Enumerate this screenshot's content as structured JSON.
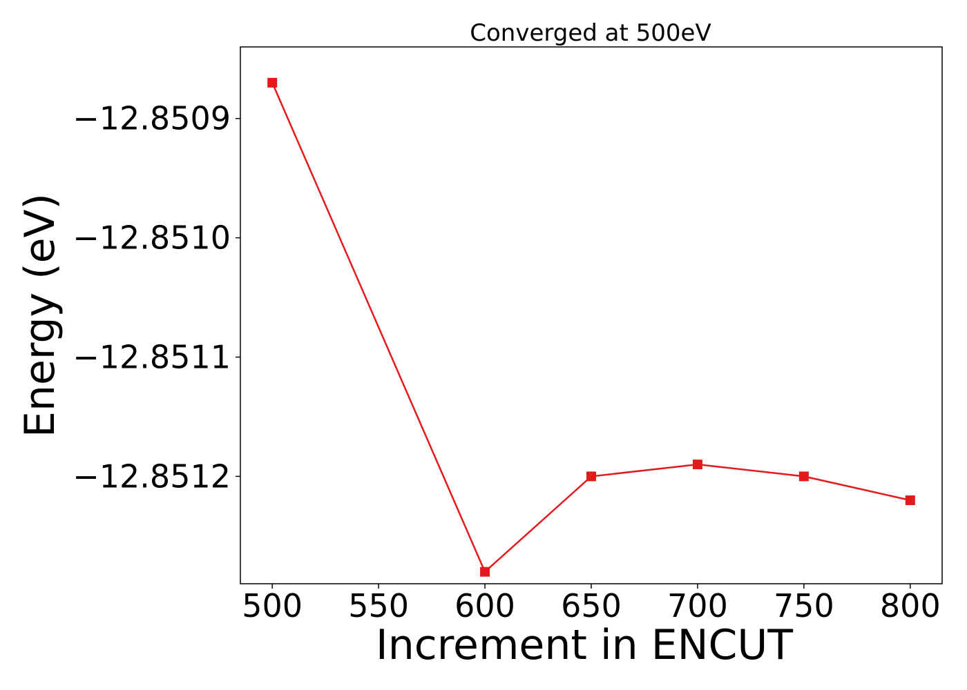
{
  "chart_data": {
    "type": "line",
    "title": "Converged at 500eV",
    "xlabel": "Increment in ENCUT",
    "ylabel": "Energy (eV)",
    "x": [
      500,
      600,
      650,
      700,
      750,
      800
    ],
    "series": [
      {
        "values": [
          -12.85087,
          -12.85128,
          -12.8512,
          -12.85119,
          -12.8512,
          -12.85122
        ],
        "color": "#e31a1c",
        "marker": "square"
      }
    ],
    "xticks": [
      "500",
      "550",
      "600",
      "650",
      "700",
      "750",
      "800"
    ],
    "xtick_values": [
      500,
      550,
      600,
      650,
      700,
      750,
      800
    ],
    "yticks": [
      "−12.8509",
      "−12.8510",
      "−12.8511",
      "−12.8512"
    ],
    "ytick_values": [
      -12.8509,
      -12.851,
      -12.8511,
      -12.8512
    ],
    "xlim": [
      485,
      815
    ],
    "ylim": [
      -12.85129,
      -12.85084
    ],
    "grid": false,
    "legend": "none"
  }
}
